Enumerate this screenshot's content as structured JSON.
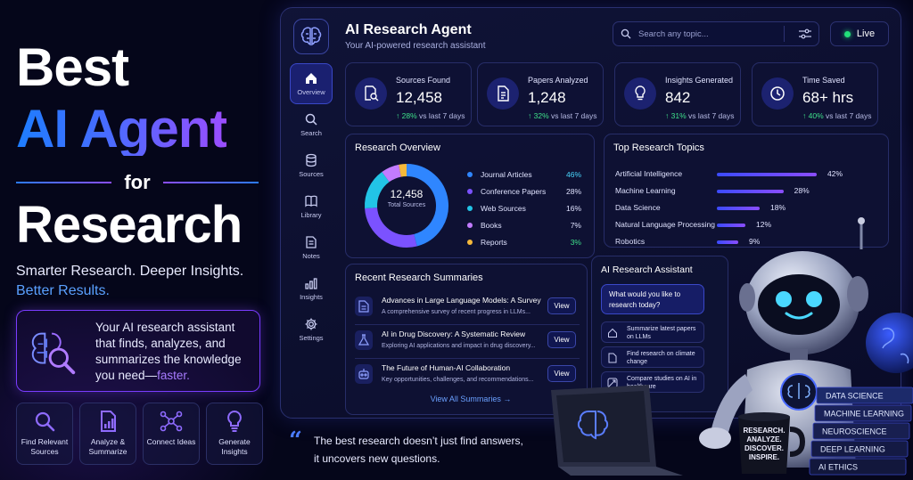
{
  "hero": {
    "line1": "Best",
    "line2": "AI Agent",
    "line3": "for",
    "line4": "Research",
    "tagline1": "Smarter Research. Deeper Insights.",
    "tagline2": "Better Results.",
    "promo_text": "Your AI research assistant that finds, analyzes, and summarizes the knowledge you need—",
    "promo_accent": "faster.",
    "features": [
      {
        "label": "Find Relevant Sources",
        "icon": "search-icon"
      },
      {
        "label": "Analyze & Summarize",
        "icon": "document-chart-icon"
      },
      {
        "label": "Connect Ideas",
        "icon": "network-icon"
      },
      {
        "label": "Generate Insights",
        "icon": "lightbulb-icon"
      }
    ]
  },
  "app": {
    "title": "AI Research Agent",
    "subtitle": "Your AI-powered research assistant",
    "search_placeholder": "Search any topic...",
    "live_label": "Live"
  },
  "sidebar": {
    "items": [
      {
        "label": "Overview",
        "icon": "home-icon",
        "active": true
      },
      {
        "label": "Search",
        "icon": "search-icon"
      },
      {
        "label": "Sources",
        "icon": "database-icon"
      },
      {
        "label": "Library",
        "icon": "book-icon"
      },
      {
        "label": "Notes",
        "icon": "notes-icon"
      },
      {
        "label": "Insights",
        "icon": "bar-chart-icon"
      },
      {
        "label": "Settings",
        "icon": "gear-icon"
      }
    ]
  },
  "stats": [
    {
      "label": "Sources Found",
      "value": "12,458",
      "delta": "↑ 28%",
      "period": "vs last 7 days",
      "icon": "document-search-icon"
    },
    {
      "label": "Papers Analyzed",
      "value": "1,248",
      "delta": "↑ 32%",
      "period": "vs last 7 days",
      "icon": "paper-icon"
    },
    {
      "label": "Insights Generated",
      "value": "842",
      "delta": "↑ 31%",
      "period": "vs last 7 days",
      "icon": "lightbulb-icon"
    },
    {
      "label": "Time Saved",
      "value": "68+ hrs",
      "delta": "↑ 40%",
      "period": "vs last 7 days",
      "icon": "clock-icon"
    }
  ],
  "overview": {
    "title": "Research Overview",
    "total_value": "12,458",
    "total_label": "Total Sources"
  },
  "topics": {
    "title": "Top Research Topics"
  },
  "chart_data": [
    {
      "type": "pie",
      "categories": [
        "Journal Articles",
        "Conference Papers",
        "Web Sources",
        "Books",
        "Reports"
      ],
      "values": [
        46,
        28,
        16,
        7,
        3
      ],
      "labels": [
        "46%",
        "28%",
        "16%",
        "7%",
        "3%"
      ],
      "colors": [
        "#2f86ff",
        "#7b52ff",
        "#22c4e6",
        "#c27bff",
        "#f5b93b"
      ]
    },
    {
      "type": "bar",
      "categories": [
        "Artificial Intelligence",
        "Machine Learning",
        "Data Science",
        "Natural Language Processing",
        "Robotics"
      ],
      "values": [
        42,
        28,
        18,
        12,
        9
      ],
      "labels": [
        "42%",
        "28%",
        "18%",
        "12%",
        "9%"
      ],
      "xlim": [
        0,
        42
      ]
    }
  ],
  "summaries": {
    "title": "Recent Research Summaries",
    "items": [
      {
        "title": "Advances in Large Language Models: A Survey",
        "snippet": "A comprehensive survey of recent progress in LLMs...",
        "button": "View",
        "icon": "document-icon"
      },
      {
        "title": "AI in Drug Discovery: A Systematic Review",
        "snippet": "Exploring AI applications and impact in drug discovery...",
        "button": "View",
        "icon": "flask-icon"
      },
      {
        "title": "The Future of Human-AI Collaboration",
        "snippet": "Key opportunities, challenges, and recommendations...",
        "button": "View",
        "icon": "robot-icon"
      }
    ],
    "view_all": "View All Summaries →"
  },
  "assistant": {
    "title": "AI Research Assistant",
    "prompt": "What would you like to research today?",
    "suggestions": [
      {
        "text": "Summarize latest papers on LLMs",
        "icon": "home-icon"
      },
      {
        "text": "Find research on climate change",
        "icon": "document-icon"
      },
      {
        "text": "Compare studies on AI in healthcare",
        "icon": "compare-icon"
      }
    ]
  },
  "quote": {
    "mark": "“",
    "line1": "The best research doesn’t just find answers,",
    "line2": "it uncovers new questions."
  },
  "scene": {
    "mug_text": [
      "RESEARCH.",
      "ANALYZE.",
      "DISCOVER.",
      "INSPIRE."
    ],
    "books": [
      "DATA SCIENCE",
      "MACHINE LEARNING",
      "NEUROSCIENCE",
      "DEEP LEARNING",
      "AI ETHICS"
    ]
  }
}
